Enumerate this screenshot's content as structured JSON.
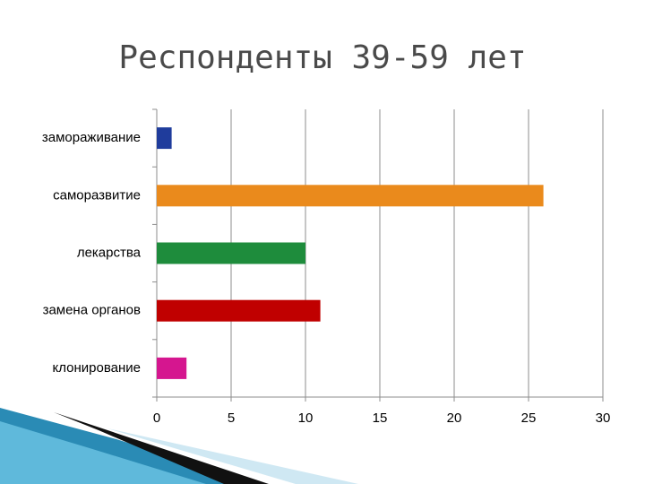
{
  "chart_data": {
    "type": "barh",
    "title": "Респонденты 39-59 лет",
    "categories": [
      "замораживание",
      "саморазвитие",
      "лекарства",
      "замена органов",
      "клонирование"
    ],
    "values": [
      1,
      26,
      10,
      11,
      2
    ],
    "colors": [
      "#1f3c9c",
      "#ea8a1c",
      "#1e8c3c",
      "#c00000",
      "#d5168f"
    ],
    "xlim": [
      0,
      30
    ],
    "xticks": [
      0,
      5,
      10,
      15,
      20,
      25,
      30
    ],
    "grid": true
  }
}
